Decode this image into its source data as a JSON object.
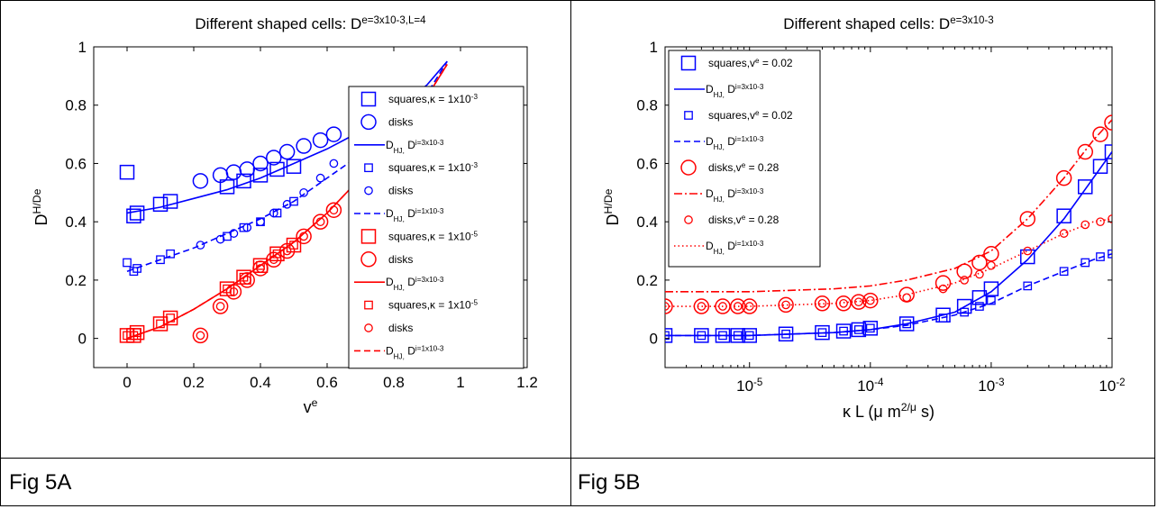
{
  "captions": {
    "left": "Fig 5A",
    "right": "Fig 5B"
  },
  "chart_data": [
    {
      "type": "scatter",
      "title": "Different shaped cells: D^e=3x10^-3,L=4",
      "xlabel": "v^e",
      "ylabel": "D^H/D^e",
      "xlim": [
        -0.1,
        1.2
      ],
      "ylim": [
        -0.1,
        1.0
      ],
      "xticks": [
        "0",
        "0.2",
        "0.4",
        "0.6",
        "0.8",
        "1",
        "1.2"
      ],
      "yticks": [
        "0",
        "0.2",
        "0.4",
        "0.6",
        "0.8",
        "1"
      ],
      "legend_position": "right",
      "legend": [
        {
          "text": "squares,κ = 1x10^-3",
          "marker": "square-big",
          "color": "#0000ff"
        },
        {
          "text": "disks",
          "marker": "circle-big",
          "color": "#0000ff"
        },
        {
          "text": "D_HJ, D^i=3x10^-3",
          "line": "solid",
          "color": "#0000ff"
        },
        {
          "text": "squares,κ = 1x10^-3",
          "marker": "square-small",
          "color": "#0000ff"
        },
        {
          "text": "disks",
          "marker": "circle-small",
          "color": "#0000ff"
        },
        {
          "text": "D_HJ, D^i=1x10^-3",
          "line": "dashed",
          "color": "#0000ff"
        },
        {
          "text": "squares,κ = 1x10^-5",
          "marker": "square-big",
          "color": "#ff0000"
        },
        {
          "text": "disks",
          "marker": "circle-big",
          "color": "#ff0000"
        },
        {
          "text": "D_HJ, D^i=3x10^-3",
          "line": "solid",
          "color": "#ff0000"
        },
        {
          "text": "squares,κ = 1x10^-5",
          "marker": "square-small",
          "color": "#ff0000"
        },
        {
          "text": "disks",
          "marker": "circle-small",
          "color": "#ff0000"
        },
        {
          "text": "D_HJ, D^i=1x10^-3",
          "line": "dashed",
          "color": "#ff0000"
        }
      ],
      "series": [
        {
          "kind": "marker",
          "marker": "square",
          "size": "big",
          "color": "#0000ff",
          "x": [
            0,
            0.02,
            0.03,
            0.1,
            0.13,
            0.3,
            0.35,
            0.4,
            0.45,
            0.5
          ],
          "y": [
            0.57,
            0.42,
            0.43,
            0.46,
            0.47,
            0.52,
            0.54,
            0.56,
            0.58,
            0.59
          ]
        },
        {
          "kind": "marker",
          "marker": "circle",
          "size": "big",
          "color": "#0000ff",
          "x": [
            0.22,
            0.28,
            0.32,
            0.36,
            0.4,
            0.44,
            0.48,
            0.53,
            0.58,
            0.62
          ],
          "y": [
            0.54,
            0.56,
            0.57,
            0.58,
            0.6,
            0.62,
            0.64,
            0.66,
            0.68,
            0.7
          ]
        },
        {
          "kind": "marker",
          "marker": "square",
          "size": "small",
          "color": "#0000ff",
          "x": [
            0,
            0.02,
            0.03,
            0.1,
            0.13,
            0.3,
            0.35,
            0.4,
            0.45,
            0.5
          ],
          "y": [
            0.26,
            0.23,
            0.24,
            0.27,
            0.29,
            0.35,
            0.38,
            0.4,
            0.43,
            0.47
          ]
        },
        {
          "kind": "marker",
          "marker": "circle",
          "size": "small",
          "color": "#0000ff",
          "x": [
            0.22,
            0.28,
            0.32,
            0.36,
            0.4,
            0.44,
            0.48,
            0.53,
            0.58,
            0.62
          ],
          "y": [
            0.32,
            0.34,
            0.36,
            0.38,
            0.4,
            0.43,
            0.46,
            0.5,
            0.55,
            0.6
          ]
        },
        {
          "kind": "marker",
          "marker": "square",
          "size": "big",
          "color": "#ff0000",
          "x": [
            0,
            0.02,
            0.03,
            0.1,
            0.13,
            0.3,
            0.35,
            0.4,
            0.45,
            0.5
          ],
          "y": [
            0.01,
            0.01,
            0.02,
            0.05,
            0.07,
            0.17,
            0.21,
            0.25,
            0.29,
            0.32
          ]
        },
        {
          "kind": "marker",
          "marker": "circle",
          "size": "big",
          "color": "#ff0000",
          "x": [
            0.22,
            0.28,
            0.32,
            0.36,
            0.4,
            0.44,
            0.48,
            0.53,
            0.58,
            0.62
          ],
          "y": [
            0.01,
            0.11,
            0.16,
            0.2,
            0.24,
            0.27,
            0.3,
            0.35,
            0.4,
            0.44
          ]
        },
        {
          "kind": "marker",
          "marker": "square",
          "size": "small",
          "color": "#ff0000",
          "x": [
            0,
            0.02,
            0.03,
            0.1,
            0.13,
            0.3,
            0.35,
            0.4,
            0.45,
            0.5
          ],
          "y": [
            0.01,
            0.01,
            0.02,
            0.05,
            0.07,
            0.17,
            0.21,
            0.25,
            0.29,
            0.32
          ]
        },
        {
          "kind": "marker",
          "marker": "circle",
          "size": "small",
          "color": "#ff0000",
          "x": [
            0.22,
            0.28,
            0.32,
            0.36,
            0.4,
            0.44,
            0.48,
            0.53,
            0.58,
            0.62
          ],
          "y": [
            0.01,
            0.11,
            0.16,
            0.2,
            0.24,
            0.27,
            0.3,
            0.35,
            0.4,
            0.44
          ]
        },
        {
          "kind": "line",
          "dash": "solid",
          "color": "#0000ff",
          "x": [
            0,
            0.1,
            0.2,
            0.3,
            0.4,
            0.5,
            0.6,
            0.7,
            0.8,
            0.9,
            0.96
          ],
          "y": [
            0.43,
            0.45,
            0.48,
            0.51,
            0.55,
            0.6,
            0.65,
            0.71,
            0.78,
            0.87,
            0.95
          ]
        },
        {
          "kind": "line",
          "dash": "dashed",
          "color": "#0000ff",
          "x": [
            0,
            0.1,
            0.2,
            0.3,
            0.4,
            0.5,
            0.6,
            0.7,
            0.8,
            0.9,
            0.96
          ],
          "y": [
            0.23,
            0.27,
            0.31,
            0.36,
            0.41,
            0.47,
            0.55,
            0.63,
            0.72,
            0.84,
            0.95
          ]
        },
        {
          "kind": "line",
          "dash": "solid",
          "color": "#ff0000",
          "x": [
            0,
            0.1,
            0.2,
            0.3,
            0.4,
            0.5,
            0.6,
            0.7,
            0.8,
            0.9,
            0.96
          ],
          "y": [
            0.0,
            0.04,
            0.1,
            0.17,
            0.25,
            0.33,
            0.43,
            0.55,
            0.68,
            0.83,
            0.94
          ]
        },
        {
          "kind": "line",
          "dash": "dashed",
          "color": "#ff0000",
          "x": [
            0,
            0.1,
            0.2,
            0.3,
            0.4,
            0.5,
            0.6,
            0.7,
            0.8,
            0.9,
            0.96
          ],
          "y": [
            0.0,
            0.04,
            0.1,
            0.17,
            0.25,
            0.33,
            0.43,
            0.55,
            0.68,
            0.83,
            0.94
          ]
        }
      ]
    },
    {
      "type": "scatter",
      "title": "Different shaped cells: D^e=3x10^-3",
      "xlabel": "κ L (μ m^2/μ s)",
      "ylabel": "D^H/D^e",
      "xscale": "log",
      "xlim": [
        2e-06,
        0.01
      ],
      "ylim": [
        -0.1,
        1.0
      ],
      "xticks": [
        1e-05,
        0.0001,
        0.001,
        0.01
      ],
      "xticklabels": [
        "10^-5",
        "10^-4",
        "10^-3",
        "10^-2"
      ],
      "yticks": [
        "0",
        "0.2",
        "0.4",
        "0.6",
        "0.8",
        "1"
      ],
      "legend_position": "top-left",
      "legend": [
        {
          "text": "squares,v^e = 0.02",
          "marker": "square-big",
          "color": "#0000ff"
        },
        {
          "text": "D_HJ, D^i=3x10^-3",
          "line": "solid",
          "color": "#0000ff"
        },
        {
          "text": "squares,v^e = 0.02",
          "marker": "square-small",
          "color": "#0000ff"
        },
        {
          "text": "D_HJ, D^i=1x10^-3",
          "line": "dashed",
          "color": "#0000ff"
        },
        {
          "text": "disks,v^e = 0.28",
          "marker": "circle-big",
          "color": "#ff0000"
        },
        {
          "text": "D_HJ, D^i=3x10^-3",
          "line": "dashdot",
          "color": "#ff0000"
        },
        {
          "text": "disks,v^e = 0.28",
          "marker": "circle-small",
          "color": "#ff0000"
        },
        {
          "text": "D_HJ, D^i=1x10^-3",
          "line": "dotted",
          "color": "#ff0000"
        }
      ],
      "series": [
        {
          "kind": "marker",
          "marker": "square",
          "size": "big",
          "color": "#0000ff",
          "x": [
            2e-06,
            4e-06,
            6e-06,
            8e-06,
            1e-05,
            2e-05,
            4e-05,
            6e-05,
            8e-05,
            0.0001,
            0.0002,
            0.0004,
            0.0006,
            0.0008,
            0.001,
            0.002,
            0.004,
            0.006,
            0.008,
            0.01
          ],
          "y": [
            0.01,
            0.01,
            0.01,
            0.01,
            0.01,
            0.015,
            0.02,
            0.025,
            0.03,
            0.035,
            0.05,
            0.08,
            0.11,
            0.14,
            0.17,
            0.28,
            0.42,
            0.52,
            0.59,
            0.64
          ]
        },
        {
          "kind": "marker",
          "marker": "square",
          "size": "small",
          "color": "#0000ff",
          "x": [
            2e-06,
            4e-06,
            6e-06,
            8e-06,
            1e-05,
            2e-05,
            4e-05,
            6e-05,
            8e-05,
            0.0001,
            0.0002,
            0.0004,
            0.0006,
            0.0008,
            0.001,
            0.002,
            0.004,
            0.006,
            0.008,
            0.01
          ],
          "y": [
            0.01,
            0.01,
            0.01,
            0.01,
            0.01,
            0.015,
            0.02,
            0.025,
            0.03,
            0.035,
            0.05,
            0.07,
            0.09,
            0.11,
            0.13,
            0.18,
            0.23,
            0.26,
            0.28,
            0.29
          ]
        },
        {
          "kind": "marker",
          "marker": "circle",
          "size": "big",
          "color": "#ff0000",
          "x": [
            2e-06,
            4e-06,
            6e-06,
            8e-06,
            1e-05,
            2e-05,
            4e-05,
            6e-05,
            8e-05,
            0.0001,
            0.0002,
            0.0004,
            0.0006,
            0.0008,
            0.001,
            0.002,
            0.004,
            0.006,
            0.008,
            0.01
          ],
          "y": [
            0.11,
            0.11,
            0.11,
            0.11,
            0.11,
            0.115,
            0.12,
            0.12,
            0.125,
            0.13,
            0.15,
            0.19,
            0.23,
            0.26,
            0.29,
            0.41,
            0.55,
            0.64,
            0.7,
            0.74
          ]
        },
        {
          "kind": "marker",
          "marker": "circle",
          "size": "small",
          "color": "#ff0000",
          "x": [
            2e-06,
            4e-06,
            6e-06,
            8e-06,
            1e-05,
            2e-05,
            4e-05,
            6e-05,
            8e-05,
            0.0001,
            0.0002,
            0.0004,
            0.0006,
            0.0008,
            0.001,
            0.002,
            0.004,
            0.006,
            0.008,
            0.01
          ],
          "y": [
            0.11,
            0.11,
            0.11,
            0.11,
            0.11,
            0.115,
            0.12,
            0.12,
            0.125,
            0.13,
            0.14,
            0.17,
            0.2,
            0.22,
            0.25,
            0.3,
            0.36,
            0.39,
            0.4,
            0.41
          ]
        },
        {
          "kind": "line",
          "dash": "solid",
          "color": "#0000ff",
          "x": [
            2e-06,
            1e-05,
            5e-05,
            0.0001,
            0.0002,
            0.0005,
            0.001,
            0.002,
            0.004,
            0.007,
            0.01
          ],
          "y": [
            0.01,
            0.01,
            0.02,
            0.03,
            0.05,
            0.09,
            0.16,
            0.27,
            0.41,
            0.55,
            0.64
          ]
        },
        {
          "kind": "line",
          "dash": "dashed",
          "color": "#0000ff",
          "x": [
            2e-06,
            1e-05,
            5e-05,
            0.0001,
            0.0002,
            0.0005,
            0.001,
            0.002,
            0.004,
            0.007,
            0.01
          ],
          "y": [
            0.01,
            0.01,
            0.02,
            0.03,
            0.045,
            0.08,
            0.12,
            0.18,
            0.23,
            0.27,
            0.29
          ]
        },
        {
          "kind": "line",
          "dash": "dashdot",
          "color": "#ff0000",
          "x": [
            2e-06,
            1e-05,
            5e-05,
            0.0001,
            0.0002,
            0.0005,
            0.001,
            0.002,
            0.004,
            0.007,
            0.01
          ],
          "y": [
            0.16,
            0.16,
            0.17,
            0.18,
            0.2,
            0.24,
            0.3,
            0.41,
            0.55,
            0.68,
            0.75
          ]
        },
        {
          "kind": "line",
          "dash": "dotted",
          "color": "#ff0000",
          "x": [
            2e-06,
            1e-05,
            5e-05,
            0.0001,
            0.0002,
            0.0005,
            0.001,
            0.002,
            0.004,
            0.007,
            0.01
          ],
          "y": [
            0.11,
            0.11,
            0.12,
            0.13,
            0.15,
            0.19,
            0.24,
            0.3,
            0.36,
            0.4,
            0.41
          ]
        }
      ]
    }
  ]
}
